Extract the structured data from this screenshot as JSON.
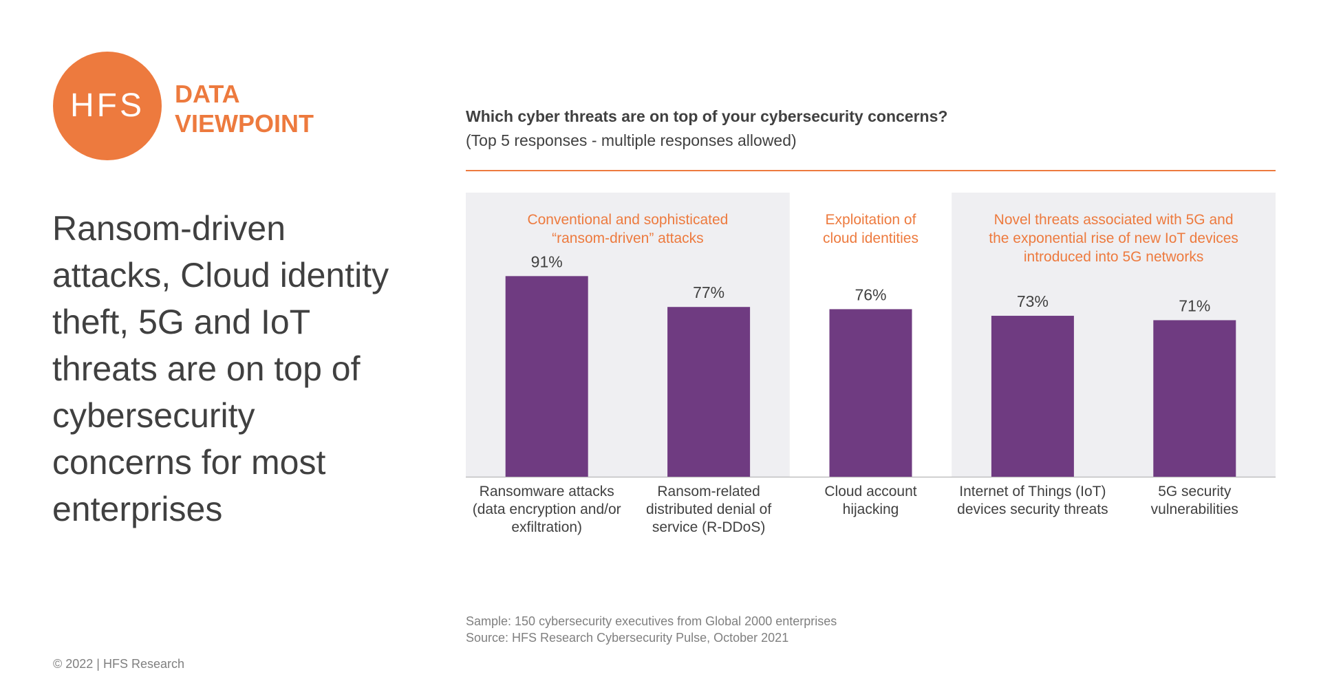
{
  "brand": {
    "logo_text": "HFS",
    "tag_line1": "DATA",
    "tag_line2": "VIEWPOINT",
    "accent_color": "#ED7A3E"
  },
  "headline": {
    "lines": [
      "Ransom-driven",
      "attacks, Cloud identity",
      "theft, 5G and IoT",
      "threats are on top of",
      "cybersecurity",
      "concerns for most",
      "enterprises"
    ]
  },
  "chart_data": {
    "type": "bar",
    "title": "Which cyber threats are on top of your cybersecurity concerns?",
    "subtitle": "(Top 5 responses - multiple responses allowed)",
    "categories": [
      "Ransomware attacks (data encryption and/or exfiltration)",
      "Ransom-related distributed denial of service (R-DDoS)",
      "Cloud account hijacking",
      "Internet of Things (IoT) devices security threats",
      "5G security vulnerabilities"
    ],
    "category_label_lines": [
      [
        "Ransomware attacks",
        "(data encryption and/or",
        "exfiltration)"
      ],
      [
        "Ransom-related",
        "distributed denial of",
        "service (R-DDoS)"
      ],
      [
        "Cloud account",
        "hijacking"
      ],
      [
        "Internet of Things (IoT)",
        "devices security threats"
      ],
      [
        "5G security",
        "vulnerabilities"
      ]
    ],
    "values": [
      91,
      77,
      76,
      73,
      71
    ],
    "value_labels": [
      "91%",
      "77%",
      "76%",
      "73%",
      "71%"
    ],
    "unit": "%",
    "ylim": [
      0,
      100
    ],
    "grid": false,
    "bar_color": "#6F3B81",
    "groups": [
      {
        "label_lines": [
          "Conventional and sophisticated",
          "“ransom-driven” attacks"
        ],
        "category_indices": [
          0,
          1
        ]
      },
      {
        "label_lines": [
          "Exploitation of",
          "cloud identities"
        ],
        "category_indices": [
          2
        ]
      },
      {
        "label_lines": [
          "Novel threats associated with 5G and",
          "the exponential rise of new IoT devices",
          "introduced into 5G networks"
        ],
        "category_indices": [
          3,
          4
        ]
      }
    ],
    "group_background_color": "#EFEFF2",
    "group_label_color": "#ED7A3E"
  },
  "footnote": {
    "sample": "Sample: 150 cybersecurity executives from Global 2000 enterprises",
    "source": "Source: HFS Research Cybersecurity Pulse, October 2021"
  },
  "copyright": "© 2022 | HFS Research"
}
